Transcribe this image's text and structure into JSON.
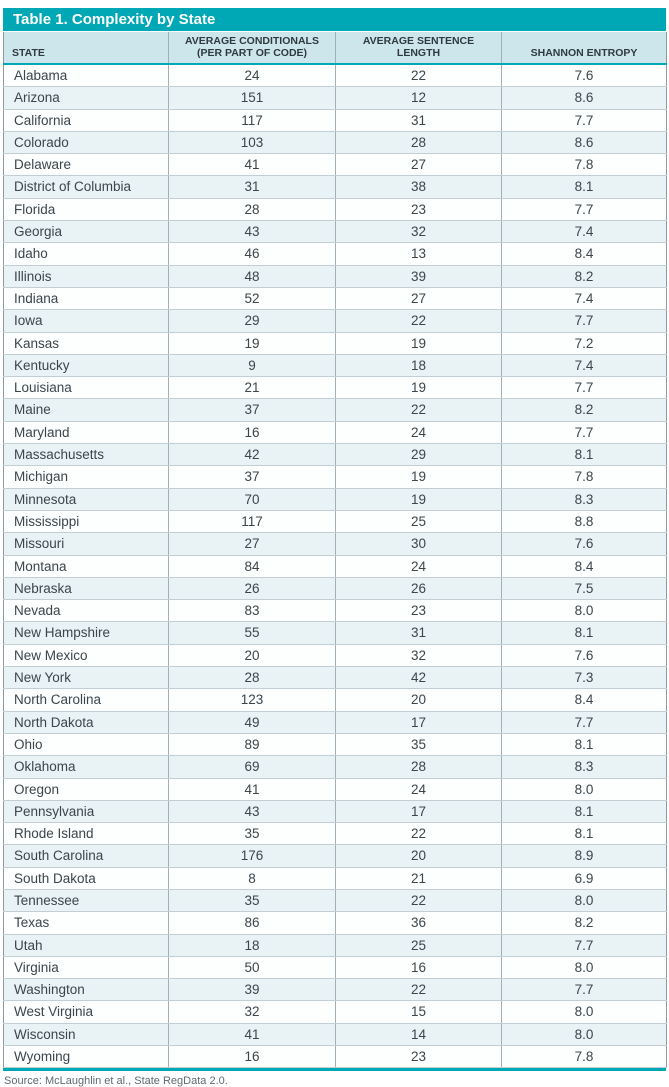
{
  "table": {
    "title": "Table 1. Complexity by State",
    "columns": {
      "state": "STATE",
      "conditionals": "AVERAGE CONDITIONALS\n(PER PART OF CODE)",
      "sentence_length": "AVERAGE SENTENCE LENGTH",
      "entropy": "SHANNON ENTROPY"
    },
    "rows": [
      [
        "Alabama",
        "24",
        "22",
        "7.6"
      ],
      [
        "Arizona",
        "151",
        "12",
        "8.6"
      ],
      [
        "California",
        "117",
        "31",
        "7.7"
      ],
      [
        "Colorado",
        "103",
        "28",
        "8.6"
      ],
      [
        "Delaware",
        "41",
        "27",
        "7.8"
      ],
      [
        "District of Columbia",
        "31",
        "38",
        "8.1"
      ],
      [
        "Florida",
        "28",
        "23",
        "7.7"
      ],
      [
        "Georgia",
        "43",
        "32",
        "7.4"
      ],
      [
        "Idaho",
        "46",
        "13",
        "8.4"
      ],
      [
        "Illinois",
        "48",
        "39",
        "8.2"
      ],
      [
        "Indiana",
        "52",
        "27",
        "7.4"
      ],
      [
        "Iowa",
        "29",
        "22",
        "7.7"
      ],
      [
        "Kansas",
        "19",
        "19",
        "7.2"
      ],
      [
        "Kentucky",
        "9",
        "18",
        "7.4"
      ],
      [
        "Louisiana",
        "21",
        "19",
        "7.7"
      ],
      [
        "Maine",
        "37",
        "22",
        "8.2"
      ],
      [
        "Maryland",
        "16",
        "24",
        "7.7"
      ],
      [
        "Massachusetts",
        "42",
        "29",
        "8.1"
      ],
      [
        "Michigan",
        "37",
        "19",
        "7.8"
      ],
      [
        "Minnesota",
        "70",
        "19",
        "8.3"
      ],
      [
        "Mississippi",
        "117",
        "25",
        "8.8"
      ],
      [
        "Missouri",
        "27",
        "30",
        "7.6"
      ],
      [
        "Montana",
        "84",
        "24",
        "8.4"
      ],
      [
        "Nebraska",
        "26",
        "26",
        "7.5"
      ],
      [
        "Nevada",
        "83",
        "23",
        "8.0"
      ],
      [
        "New Hampshire",
        "55",
        "31",
        "8.1"
      ],
      [
        "New Mexico",
        "20",
        "32",
        "7.6"
      ],
      [
        "New York",
        "28",
        "42",
        "7.3"
      ],
      [
        "North Carolina",
        "123",
        "20",
        "8.4"
      ],
      [
        "North Dakota",
        "49",
        "17",
        "7.7"
      ],
      [
        "Ohio",
        "89",
        "35",
        "8.1"
      ],
      [
        "Oklahoma",
        "69",
        "28",
        "8.3"
      ],
      [
        "Oregon",
        "41",
        "24",
        "8.0"
      ],
      [
        "Pennsylvania",
        "43",
        "17",
        "8.1"
      ],
      [
        "Rhode Island",
        "35",
        "22",
        "8.1"
      ],
      [
        "South Carolina",
        "176",
        "20",
        "8.9"
      ],
      [
        "South Dakota",
        "8",
        "21",
        "6.9"
      ],
      [
        "Tennessee",
        "35",
        "22",
        "8.0"
      ],
      [
        "Texas",
        "86",
        "36",
        "8.2"
      ],
      [
        "Utah",
        "18",
        "25",
        "7.7"
      ],
      [
        "Virginia",
        "50",
        "16",
        "8.0"
      ],
      [
        "Washington",
        "39",
        "22",
        "7.7"
      ],
      [
        "West Virginia",
        "32",
        "15",
        "8.0"
      ],
      [
        "Wisconsin",
        "41",
        "14",
        "8.0"
      ],
      [
        "Wyoming",
        "16",
        "23",
        "7.8"
      ]
    ]
  },
  "source": "Source: McLaughlin et al., State RegData 2.0.",
  "colors": {
    "accent_teal": "#00a7b5",
    "header_bg": "#cde6ec",
    "row_alt_bg": "#e9f3f6"
  },
  "chart_data": {
    "type": "table",
    "title": "Table 1. Complexity by State",
    "columns": [
      "STATE",
      "AVERAGE CONDITIONALS (PER PART OF CODE)",
      "AVERAGE SENTENCE LENGTH",
      "SHANNON ENTROPY"
    ],
    "rows": [
      {
        "state": "Alabama",
        "avg_conditionals": 24,
        "avg_sentence_length": 22,
        "shannon_entropy": 7.6
      },
      {
        "state": "Arizona",
        "avg_conditionals": 151,
        "avg_sentence_length": 12,
        "shannon_entropy": 8.6
      },
      {
        "state": "California",
        "avg_conditionals": 117,
        "avg_sentence_length": 31,
        "shannon_entropy": 7.7
      },
      {
        "state": "Colorado",
        "avg_conditionals": 103,
        "avg_sentence_length": 28,
        "shannon_entropy": 8.6
      },
      {
        "state": "Delaware",
        "avg_conditionals": 41,
        "avg_sentence_length": 27,
        "shannon_entropy": 7.8
      },
      {
        "state": "District of Columbia",
        "avg_conditionals": 31,
        "avg_sentence_length": 38,
        "shannon_entropy": 8.1
      },
      {
        "state": "Florida",
        "avg_conditionals": 28,
        "avg_sentence_length": 23,
        "shannon_entropy": 7.7
      },
      {
        "state": "Georgia",
        "avg_conditionals": 43,
        "avg_sentence_length": 32,
        "shannon_entropy": 7.4
      },
      {
        "state": "Idaho",
        "avg_conditionals": 46,
        "avg_sentence_length": 13,
        "shannon_entropy": 8.4
      },
      {
        "state": "Illinois",
        "avg_conditionals": 48,
        "avg_sentence_length": 39,
        "shannon_entropy": 8.2
      },
      {
        "state": "Indiana",
        "avg_conditionals": 52,
        "avg_sentence_length": 27,
        "shannon_entropy": 7.4
      },
      {
        "state": "Iowa",
        "avg_conditionals": 29,
        "avg_sentence_length": 22,
        "shannon_entropy": 7.7
      },
      {
        "state": "Kansas",
        "avg_conditionals": 19,
        "avg_sentence_length": 19,
        "shannon_entropy": 7.2
      },
      {
        "state": "Kentucky",
        "avg_conditionals": 9,
        "avg_sentence_length": 18,
        "shannon_entropy": 7.4
      },
      {
        "state": "Louisiana",
        "avg_conditionals": 21,
        "avg_sentence_length": 19,
        "shannon_entropy": 7.7
      },
      {
        "state": "Maine",
        "avg_conditionals": 37,
        "avg_sentence_length": 22,
        "shannon_entropy": 8.2
      },
      {
        "state": "Maryland",
        "avg_conditionals": 16,
        "avg_sentence_length": 24,
        "shannon_entropy": 7.7
      },
      {
        "state": "Massachusetts",
        "avg_conditionals": 42,
        "avg_sentence_length": 29,
        "shannon_entropy": 8.1
      },
      {
        "state": "Michigan",
        "avg_conditionals": 37,
        "avg_sentence_length": 19,
        "shannon_entropy": 7.8
      },
      {
        "state": "Minnesota",
        "avg_conditionals": 70,
        "avg_sentence_length": 19,
        "shannon_entropy": 8.3
      },
      {
        "state": "Mississippi",
        "avg_conditionals": 117,
        "avg_sentence_length": 25,
        "shannon_entropy": 8.8
      },
      {
        "state": "Missouri",
        "avg_conditionals": 27,
        "avg_sentence_length": 30,
        "shannon_entropy": 7.6
      },
      {
        "state": "Montana",
        "avg_conditionals": 84,
        "avg_sentence_length": 24,
        "shannon_entropy": 8.4
      },
      {
        "state": "Nebraska",
        "avg_conditionals": 26,
        "avg_sentence_length": 26,
        "shannon_entropy": 7.5
      },
      {
        "state": "Nevada",
        "avg_conditionals": 83,
        "avg_sentence_length": 23,
        "shannon_entropy": 8.0
      },
      {
        "state": "New Hampshire",
        "avg_conditionals": 55,
        "avg_sentence_length": 31,
        "shannon_entropy": 8.1
      },
      {
        "state": "New Mexico",
        "avg_conditionals": 20,
        "avg_sentence_length": 32,
        "shannon_entropy": 7.6
      },
      {
        "state": "New York",
        "avg_conditionals": 28,
        "avg_sentence_length": 42,
        "shannon_entropy": 7.3
      },
      {
        "state": "North Carolina",
        "avg_conditionals": 123,
        "avg_sentence_length": 20,
        "shannon_entropy": 8.4
      },
      {
        "state": "North Dakota",
        "avg_conditionals": 49,
        "avg_sentence_length": 17,
        "shannon_entropy": 7.7
      },
      {
        "state": "Ohio",
        "avg_conditionals": 89,
        "avg_sentence_length": 35,
        "shannon_entropy": 8.1
      },
      {
        "state": "Oklahoma",
        "avg_conditionals": 69,
        "avg_sentence_length": 28,
        "shannon_entropy": 8.3
      },
      {
        "state": "Oregon",
        "avg_conditionals": 41,
        "avg_sentence_length": 24,
        "shannon_entropy": 8.0
      },
      {
        "state": "Pennsylvania",
        "avg_conditionals": 43,
        "avg_sentence_length": 17,
        "shannon_entropy": 8.1
      },
      {
        "state": "Rhode Island",
        "avg_conditionals": 35,
        "avg_sentence_length": 22,
        "shannon_entropy": 8.1
      },
      {
        "state": "South Carolina",
        "avg_conditionals": 176,
        "avg_sentence_length": 20,
        "shannon_entropy": 8.9
      },
      {
        "state": "South Dakota",
        "avg_conditionals": 8,
        "avg_sentence_length": 21,
        "shannon_entropy": 6.9
      },
      {
        "state": "Tennessee",
        "avg_conditionals": 35,
        "avg_sentence_length": 22,
        "shannon_entropy": 8.0
      },
      {
        "state": "Texas",
        "avg_conditionals": 86,
        "avg_sentence_length": 36,
        "shannon_entropy": 8.2
      },
      {
        "state": "Utah",
        "avg_conditionals": 18,
        "avg_sentence_length": 25,
        "shannon_entropy": 7.7
      },
      {
        "state": "Virginia",
        "avg_conditionals": 50,
        "avg_sentence_length": 16,
        "shannon_entropy": 8.0
      },
      {
        "state": "Washington",
        "avg_conditionals": 39,
        "avg_sentence_length": 22,
        "shannon_entropy": 7.7
      },
      {
        "state": "West Virginia",
        "avg_conditionals": 32,
        "avg_sentence_length": 15,
        "shannon_entropy": 8.0
      },
      {
        "state": "Wisconsin",
        "avg_conditionals": 41,
        "avg_sentence_length": 14,
        "shannon_entropy": 8.0
      },
      {
        "state": "Wyoming",
        "avg_conditionals": 16,
        "avg_sentence_length": 23,
        "shannon_entropy": 7.8
      }
    ]
  }
}
